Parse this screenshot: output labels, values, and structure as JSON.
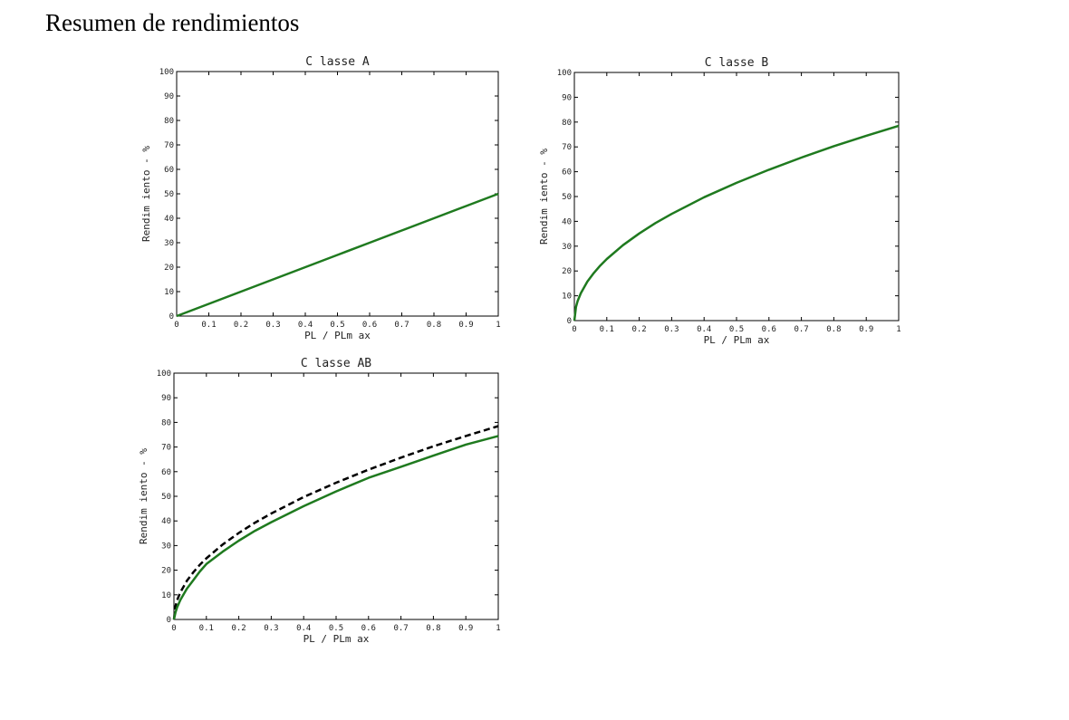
{
  "page": {
    "title": "Resumen de rendimientos"
  },
  "chart_data": [
    {
      "type": "line",
      "title": "C lasse A",
      "xlabel": "PL / PLm ax",
      "ylabel": "Rendim iento - %",
      "xlim": [
        0,
        1
      ],
      "ylim": [
        0,
        100
      ],
      "xticks": [
        "0",
        "0.1",
        "0.2",
        "0.3",
        "0.4",
        "0.5",
        "0.6",
        "0.7",
        "0.8",
        "0.9",
        "1"
      ],
      "yticks": [
        "0",
        "10",
        "20",
        "30",
        "40",
        "50",
        "60",
        "70",
        "80",
        "90",
        "100"
      ],
      "grid": false,
      "series": [
        {
          "color": "#1f7a1f",
          "style": "solid",
          "x": [
            0,
            0.1,
            0.2,
            0.3,
            0.4,
            0.5,
            0.6,
            0.7,
            0.8,
            0.9,
            1.0
          ],
          "y": [
            0,
            5,
            10,
            15,
            20,
            25,
            30,
            35,
            40,
            45,
            50
          ]
        }
      ]
    },
    {
      "type": "line",
      "title": "C lasse B",
      "xlabel": "PL / PLm ax",
      "ylabel": "Rendim iento - %",
      "xlim": [
        0,
        1
      ],
      "ylim": [
        0,
        100
      ],
      "xticks": [
        "0",
        "0.1",
        "0.2",
        "0.3",
        "0.4",
        "0.5",
        "0.6",
        "0.7",
        "0.8",
        "0.9",
        "1"
      ],
      "yticks": [
        "0",
        "10",
        "20",
        "30",
        "40",
        "50",
        "60",
        "70",
        "80",
        "90",
        "100"
      ],
      "grid": false,
      "series": [
        {
          "color": "#1f7a1f",
          "style": "solid",
          "x": [
            0,
            0.005,
            0.01,
            0.02,
            0.04,
            0.06,
            0.08,
            0.1,
            0.15,
            0.2,
            0.25,
            0.3,
            0.4,
            0.5,
            0.6,
            0.7,
            0.8,
            0.9,
            1.0
          ],
          "y": [
            0,
            5.5,
            7.9,
            11.1,
            15.7,
            19.2,
            22.2,
            24.8,
            30.4,
            35.1,
            39.3,
            43.0,
            49.7,
            55.5,
            60.8,
            65.7,
            70.3,
            74.5,
            78.5
          ]
        }
      ]
    },
    {
      "type": "line",
      "title": "C lasse AB",
      "xlabel": "PL / PLm ax",
      "ylabel": "Rendim iento - %",
      "xlim": [
        0,
        1
      ],
      "ylim": [
        0,
        100
      ],
      "xticks": [
        "0",
        "0.1",
        "0.2",
        "0.3",
        "0.4",
        "0.5",
        "0.6",
        "0.7",
        "0.8",
        "0.9",
        "1"
      ],
      "yticks": [
        "0",
        "10",
        "20",
        "30",
        "40",
        "50",
        "60",
        "70",
        "80",
        "90",
        "100"
      ],
      "grid": false,
      "series": [
        {
          "color": "#000000",
          "style": "dashed",
          "x": [
            0,
            0.005,
            0.01,
            0.02,
            0.04,
            0.06,
            0.08,
            0.1,
            0.15,
            0.2,
            0.25,
            0.3,
            0.4,
            0.5,
            0.6,
            0.7,
            0.8,
            0.9,
            1.0
          ],
          "y": [
            0,
            5.5,
            7.9,
            11.1,
            15.7,
            19.2,
            22.2,
            24.8,
            30.4,
            35.1,
            39.3,
            43.0,
            49.7,
            55.5,
            60.8,
            65.7,
            70.3,
            74.5,
            78.5
          ]
        },
        {
          "color": "#1f7a1f",
          "style": "solid",
          "x": [
            0,
            0.005,
            0.01,
            0.02,
            0.04,
            0.06,
            0.08,
            0.1,
            0.15,
            0.2,
            0.25,
            0.3,
            0.4,
            0.5,
            0.6,
            0.7,
            0.8,
            0.9,
            1.0
          ],
          "y": [
            0,
            3.0,
            5.0,
            8.0,
            12.5,
            16.0,
            19.5,
            22.5,
            27.5,
            32.0,
            36.0,
            39.5,
            46.0,
            52.0,
            57.5,
            62.0,
            66.5,
            71.0,
            74.5
          ]
        }
      ]
    }
  ]
}
